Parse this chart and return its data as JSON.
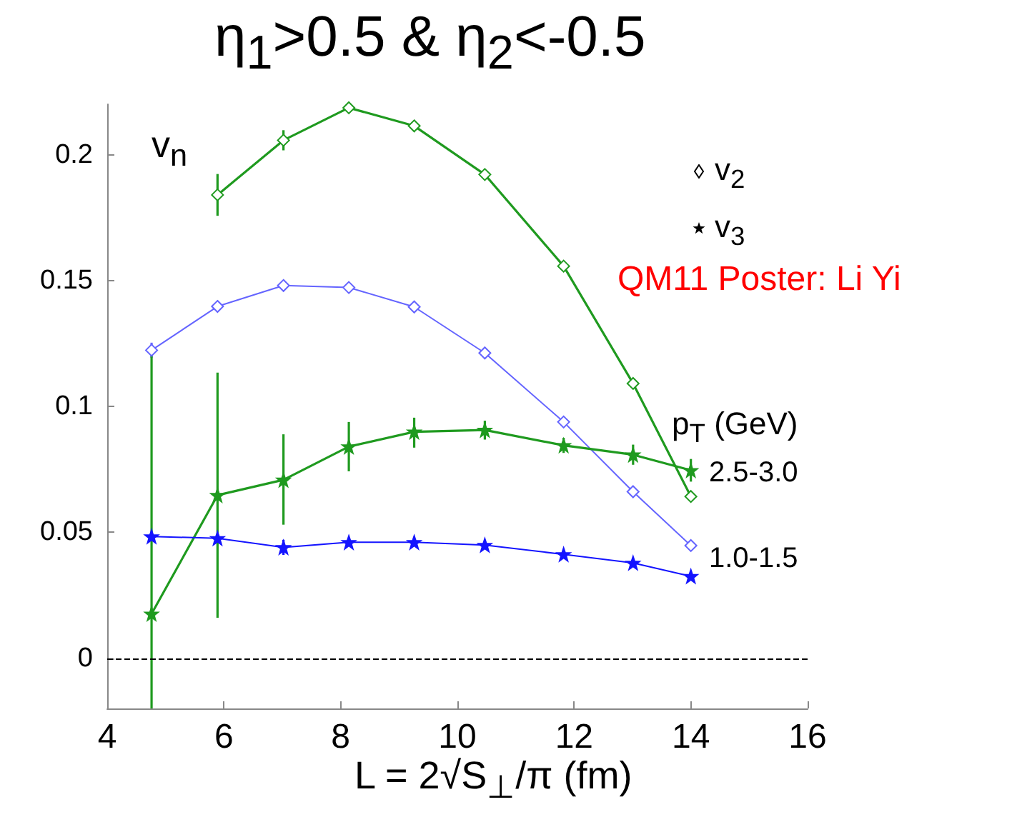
{
  "chart_data": {
    "type": "line",
    "title": "η$_{1}$>0.5 & η$_{2}$<-0.5",
    "xlabel": "L = 2√S$_{⊥}$/π  (fm)",
    "ylabel": "v$_{n}$",
    "x": [
      4.76,
      5.89,
      7.02,
      8.14,
      9.26,
      10.47,
      11.82,
      13.01,
      14.0
    ],
    "series": [
      {
        "color": "#1f9a1f",
        "marker": "diamond",
        "values": [
          null,
          0.184,
          0.2057,
          0.2186,
          0.2114,
          0.1921,
          0.1557,
          0.1091,
          0.0642
        ],
        "errors": [
          null,
          0.0083,
          0.004,
          null,
          null,
          null,
          null,
          null,
          null
        ]
      },
      {
        "color": "#6464ff",
        "marker": "diamond",
        "values": [
          0.1223,
          0.1397,
          0.148,
          0.1472,
          0.1395,
          0.1212,
          0.0938,
          0.0661,
          0.0447
        ],
        "errors": [
          0.003,
          null,
          null,
          null,
          null,
          null,
          null,
          null,
          null
        ]
      },
      {
        "color": "#1f9a1f",
        "marker": "star",
        "values": [
          0.0176,
          0.0647,
          0.0708,
          0.084,
          0.0899,
          0.0906,
          0.0845,
          0.0808,
          0.0746
        ],
        "errors": [
          [
            -0.02,
            0.12
          ],
          [
            0.016,
            0.1134
          ],
          [
            0.053,
            0.0889
          ],
          [
            0.0742,
            0.0938
          ],
          [
            0.0836,
            0.0955
          ],
          [
            0.0868,
            0.0943
          ],
          0.003,
          0.004,
          0.0045
        ]
      },
      {
        "color": "#1414ff",
        "marker": "star",
        "values": [
          0.0483,
          0.0476,
          0.044,
          0.046,
          0.046,
          0.0449,
          0.0412,
          0.0378,
          0.0325
        ],
        "errors": [
          null,
          null,
          0.003,
          null,
          null,
          null,
          null,
          null,
          null
        ]
      }
    ],
    "xlim": [
      4,
      16
    ],
    "xticks": [
      4,
      6,
      8,
      10,
      12,
      14,
      16
    ],
    "ylim": [
      -0.02,
      0.22
    ],
    "yticks": [
      0,
      0.05,
      0.1,
      0.15,
      0.2
    ],
    "ref_lines": [
      {
        "axis": "y",
        "value": 0,
        "color": "#000000",
        "line_style": "dashed"
      }
    ],
    "annotations": [
      "v$_{2}$",
      "v$_{3}$",
      "QM11 Poster: Li Yi",
      "p$_{T}$ (GeV)",
      "2.5-3.0",
      "1.0-1.5"
    ],
    "grid": false
  }
}
